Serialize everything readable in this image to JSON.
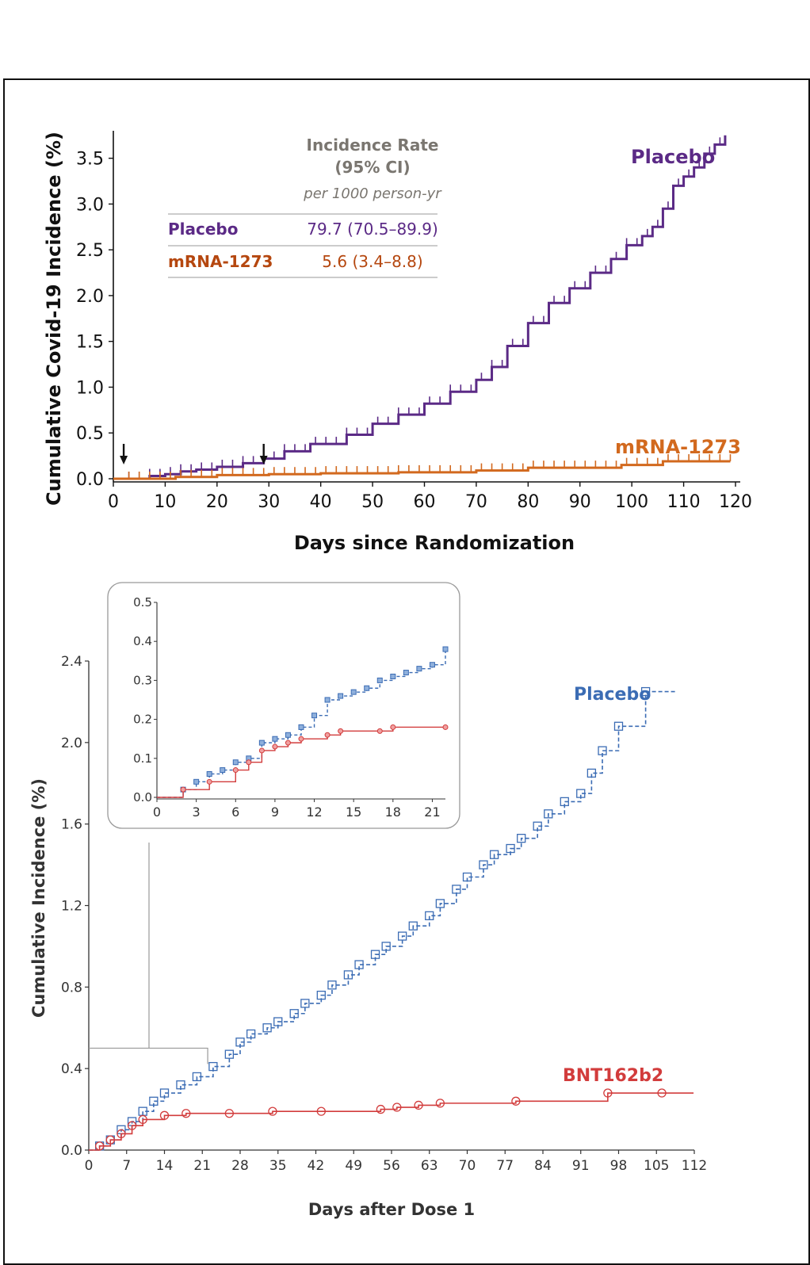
{
  "chart_data": [
    {
      "type": "line",
      "subtype": "kaplan-meier-step",
      "xlabel": "Days since Randomization",
      "ylabel": "Cumulative Covid-19 Incidence (%)",
      "xlim": [
        0,
        120
      ],
      "ylim": [
        0,
        3.8
      ],
      "xticks": [
        "0",
        "10",
        "20",
        "30",
        "40",
        "50",
        "60",
        "70",
        "80",
        "90",
        "100",
        "110",
        "120"
      ],
      "yticks": [
        "0.0",
        "0.5",
        "1.0",
        "1.5",
        "2.0",
        "2.5",
        "3.0",
        "3.5"
      ],
      "legend_table": {
        "header_line1": "Incidence Rate",
        "header_line2": "(95% CI)",
        "header_unit": "per 1000 person-yr",
        "rows": [
          {
            "label": "Placebo",
            "value": "79.7 (70.5–89.9)"
          },
          {
            "label": "mRNA-1273",
            "value": "5.6 (3.4–8.8)"
          }
        ]
      },
      "annotations": [
        {
          "type": "arrow",
          "x": 2
        },
        {
          "type": "arrow",
          "x": 29
        }
      ],
      "series": [
        {
          "name": "Placebo",
          "color": "#5b2a86",
          "x": [
            0,
            3,
            7,
            10,
            13,
            16,
            20,
            25,
            29,
            33,
            38,
            45,
            50,
            55,
            60,
            65,
            70,
            73,
            76,
            80,
            84,
            88,
            92,
            96,
            99,
            102,
            104,
            106,
            108,
            110,
            112,
            114,
            116,
            118
          ],
          "y": [
            0,
            0.0,
            0.03,
            0.05,
            0.08,
            0.1,
            0.13,
            0.17,
            0.22,
            0.3,
            0.38,
            0.48,
            0.6,
            0.7,
            0.82,
            0.95,
            1.08,
            1.22,
            1.45,
            1.7,
            1.92,
            2.08,
            2.25,
            2.4,
            2.55,
            2.65,
            2.75,
            2.95,
            3.2,
            3.3,
            3.4,
            3.55,
            3.65,
            3.75
          ]
        },
        {
          "name": "mRNA-1273",
          "color": "#d2691e",
          "x": [
            0,
            5,
            12,
            20,
            30,
            40,
            55,
            70,
            80,
            98,
            106,
            119
          ],
          "y": [
            0,
            0.0,
            0.02,
            0.04,
            0.05,
            0.06,
            0.07,
            0.09,
            0.12,
            0.15,
            0.19,
            0.19
          ]
        }
      ]
    },
    {
      "type": "line",
      "subtype": "kaplan-meier-step",
      "xlabel": "Days after Dose 1",
      "ylabel": "Cumulative Incidence (%)",
      "xlim": [
        0,
        112
      ],
      "ylim": [
        0,
        2.4
      ],
      "xticks": [
        "0",
        "7",
        "14",
        "21",
        "28",
        "35",
        "42",
        "49",
        "56",
        "63",
        "70",
        "77",
        "84",
        "91",
        "98",
        "105",
        "112"
      ],
      "yticks": [
        "0.0",
        "0.4",
        "0.8",
        "1.2",
        "1.6",
        "2.0",
        "2.4"
      ],
      "series": [
        {
          "name": "Placebo",
          "color": "#3b6cb4",
          "x": [
            0,
            2,
            4,
            6,
            8,
            10,
            12,
            14,
            17,
            20,
            23,
            26,
            28,
            30,
            33,
            35,
            38,
            40,
            43,
            45,
            48,
            50,
            53,
            55,
            58,
            60,
            63,
            65,
            68,
            70,
            73,
            75,
            78,
            80,
            83,
            85,
            88,
            91,
            93,
            95,
            98,
            103
          ],
          "y": [
            0,
            0.02,
            0.05,
            0.1,
            0.14,
            0.19,
            0.24,
            0.28,
            0.32,
            0.36,
            0.41,
            0.47,
            0.53,
            0.57,
            0.6,
            0.63,
            0.67,
            0.72,
            0.76,
            0.81,
            0.86,
            0.91,
            0.96,
            1.0,
            1.05,
            1.1,
            1.15,
            1.21,
            1.28,
            1.34,
            1.4,
            1.45,
            1.48,
            1.53,
            1.59,
            1.65,
            1.71,
            1.75,
            1.85,
            1.96,
            2.08,
            2.25
          ]
        },
        {
          "name": "BNT162b2",
          "color": "#d23c3c",
          "x": [
            0,
            2,
            4,
            6,
            8,
            10,
            14,
            18,
            26,
            34,
            43,
            54,
            57,
            61,
            65,
            79,
            96,
            106
          ],
          "y": [
            0,
            0.02,
            0.05,
            0.08,
            0.12,
            0.15,
            0.17,
            0.18,
            0.18,
            0.19,
            0.19,
            0.2,
            0.21,
            0.22,
            0.23,
            0.24,
            0.28,
            0.28
          ]
        }
      ],
      "inset": {
        "xlim": [
          0,
          22
        ],
        "ylim": [
          0,
          0.5
        ],
        "xticks": [
          "0",
          "3",
          "6",
          "9",
          "12",
          "15",
          "18",
          "21"
        ],
        "yticks": [
          "0.0",
          "0.1",
          "0.2",
          "0.3",
          "0.4",
          "0.5"
        ],
        "series": [
          {
            "name": "Placebo",
            "color": "#3b6cb4",
            "x": [
              0,
              1,
              2,
              3,
              4,
              5,
              6,
              7,
              8,
              9,
              10,
              11,
              12,
              13,
              14,
              15,
              16,
              17,
              18,
              19,
              20,
              21,
              22
            ],
            "y": [
              0,
              0.0,
              0.02,
              0.04,
              0.06,
              0.07,
              0.09,
              0.1,
              0.14,
              0.15,
              0.16,
              0.18,
              0.21,
              0.25,
              0.26,
              0.27,
              0.28,
              0.3,
              0.31,
              0.32,
              0.33,
              0.34,
              0.38
            ]
          },
          {
            "name": "BNT162b2",
            "color": "#d23c3c",
            "x": [
              0,
              1,
              2,
              4,
              6,
              7,
              8,
              9,
              10,
              11,
              13,
              14,
              17,
              18,
              22
            ],
            "y": [
              0,
              0.0,
              0.02,
              0.04,
              0.07,
              0.09,
              0.12,
              0.13,
              0.14,
              0.15,
              0.16,
              0.17,
              0.17,
              0.18,
              0.18
            ]
          }
        ]
      }
    }
  ]
}
